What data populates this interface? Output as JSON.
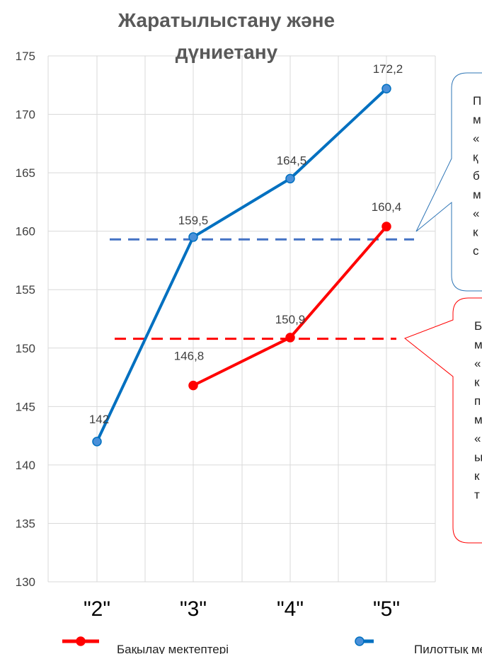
{
  "chart_data": {
    "type": "line",
    "title_lines": [
      "Жаратылыстану және",
      "дүниетану"
    ],
    "categories": [
      "\"2\"",
      "\"3\"",
      "\"4\"",
      "\"5\""
    ],
    "ylim": [
      130,
      175
    ],
    "yticks": [
      130,
      135,
      140,
      145,
      150,
      155,
      160,
      165,
      170,
      175
    ],
    "grid": true,
    "series": [
      {
        "name": "Бақылау мектептері",
        "color": "#ff0000",
        "values": [
          null,
          146.8,
          150.9,
          160.4
        ],
        "labels": [
          "",
          "146,8",
          "150,9",
          "160,4"
        ],
        "average_line": 150.8
      },
      {
        "name": "Пилоттық мектептер",
        "color": "#0070c0",
        "marker_color": "#4a90d9",
        "values": [
          142,
          159.5,
          164.5,
          172.2
        ],
        "labels": [
          "142",
          "159,5",
          "164,5",
          "172,2"
        ],
        "average_line": 159.3
      }
    ],
    "callouts": [
      {
        "color": "#2e75b6",
        "lines": [
          "П",
          "м",
          "«",
          "қ",
          "б",
          "м",
          "«",
          "к",
          "с"
        ]
      },
      {
        "color": "#ff0000",
        "lines": [
          "Б",
          "м",
          "«",
          "к",
          "п",
          "м",
          "«",
          "ы",
          "к",
          "т"
        ]
      }
    ],
    "legend": "bottom"
  }
}
